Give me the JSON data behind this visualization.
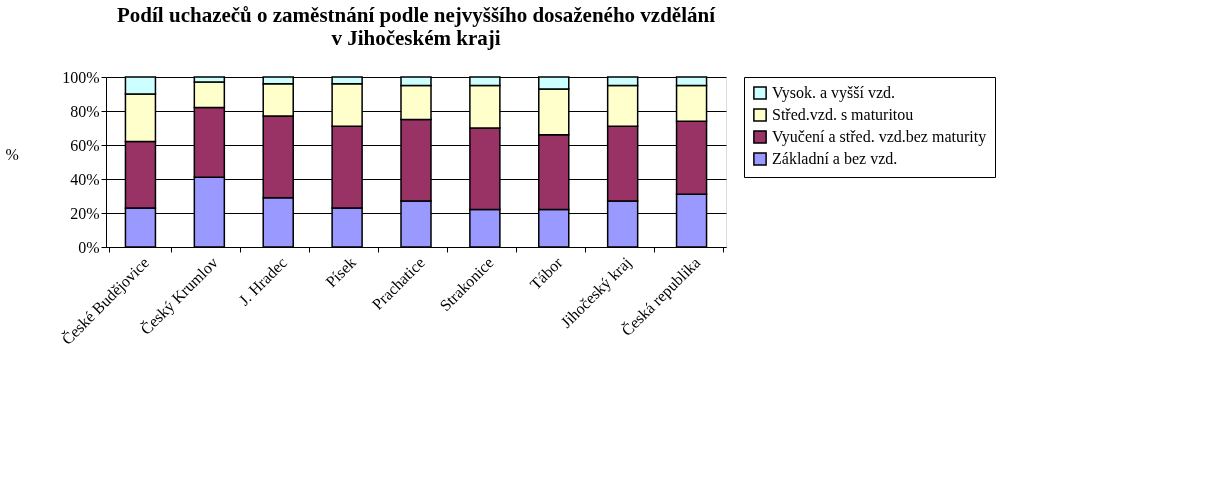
{
  "chart_data": {
    "type": "bar",
    "stacked": true,
    "title": [
      "Podíl uchazečů o zaměstnání podle nejvyššího dosaženého vzdělání",
      "v Jihočeském kraji"
    ],
    "ylabel": "%",
    "categories": [
      "České Budějovice",
      "Český Krumlov",
      "J. Hradec",
      "Písek",
      "Prachatice",
      "Strakonice",
      "Tábor",
      "Jihočeský kraj",
      "Česká republika"
    ],
    "series": [
      {
        "name": "Základní a bez vzd.",
        "color": "#9999ff",
        "values": [
          23,
          41,
          29,
          23,
          27,
          22,
          22,
          27,
          31
        ]
      },
      {
        "name": "Vyučení a střed. vzd.bez maturity",
        "color": "#993366",
        "values": [
          39,
          41,
          48,
          48,
          48,
          48,
          44,
          44,
          43
        ]
      },
      {
        "name": "Střed.vzd. s maturitou",
        "color": "#ffffcc",
        "values": [
          28,
          15,
          19,
          25,
          20,
          25,
          27,
          24,
          21
        ]
      },
      {
        "name": "Vysok. a vyšší vzd.",
        "color": "#ccffff",
        "values": [
          10,
          3,
          4,
          4,
          5,
          5,
          7,
          5,
          5
        ]
      }
    ],
    "ylim": [
      0,
      100
    ],
    "yticks": [
      {
        "value": 0,
        "label": "0%"
      },
      {
        "value": 20,
        "label": "20%"
      },
      {
        "value": 40,
        "label": "40%"
      },
      {
        "value": 60,
        "label": "60%"
      },
      {
        "value": 80,
        "label": "80%"
      },
      {
        "value": 100,
        "label": "100%"
      }
    ],
    "grid": "y",
    "legend": "right"
  }
}
